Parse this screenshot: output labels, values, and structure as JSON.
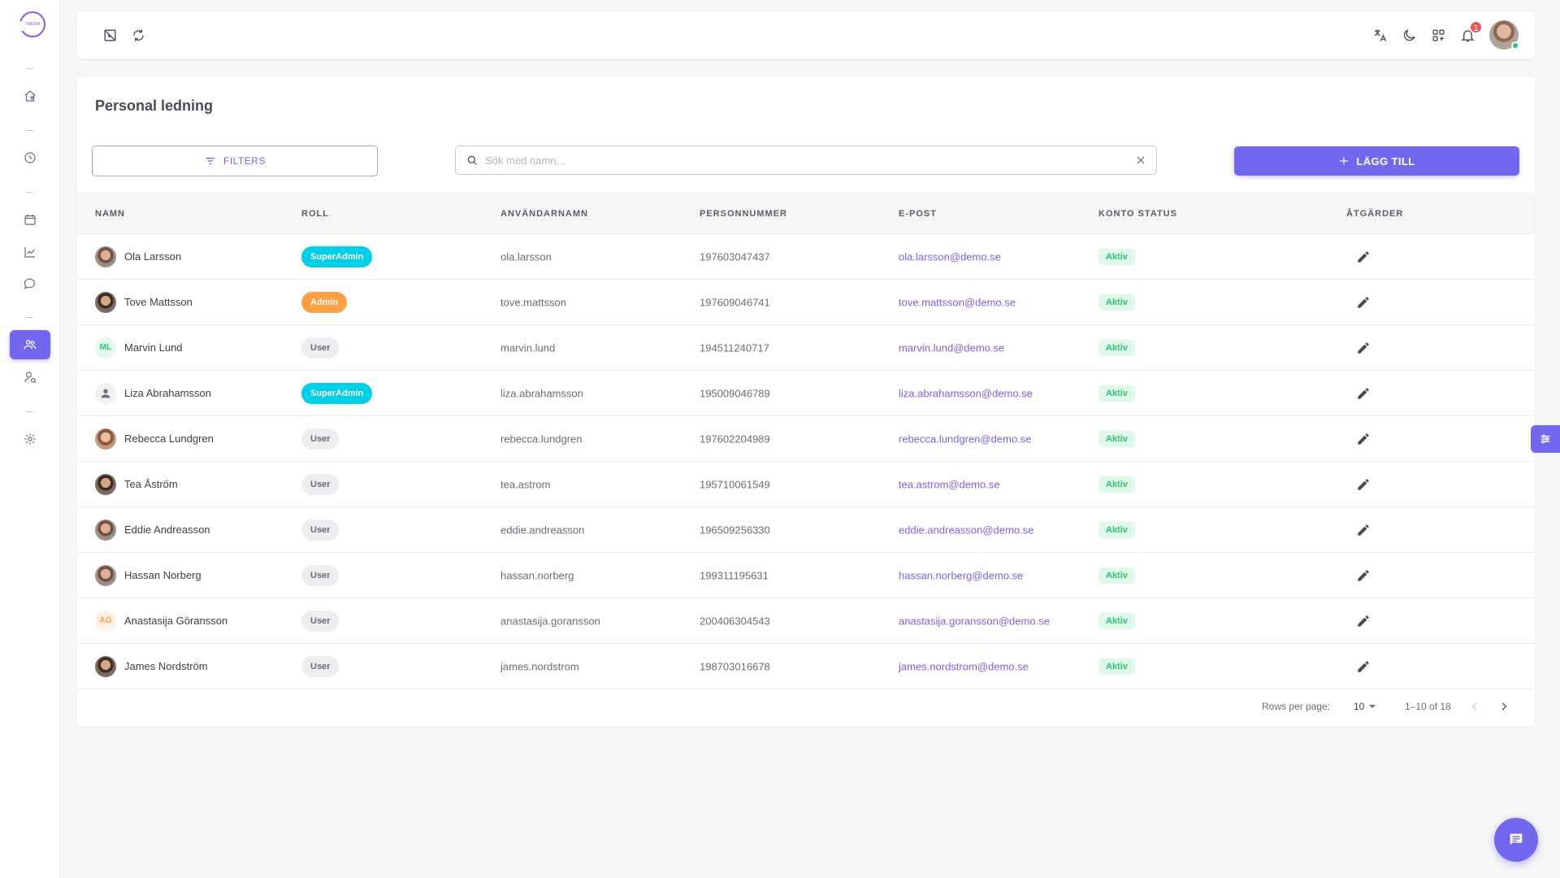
{
  "sidebar": {
    "logo_text": "TIMERA",
    "items": [
      {
        "icon": "home-icon",
        "name": "sidebar-item-home"
      },
      {
        "icon": "clock-icon",
        "name": "sidebar-item-time"
      },
      {
        "icon": "calendar-icon",
        "name": "sidebar-item-calendar"
      },
      {
        "icon": "chart-icon",
        "name": "sidebar-item-reports"
      },
      {
        "icon": "chat-icon",
        "name": "sidebar-item-messages"
      },
      {
        "icon": "users-icon",
        "name": "sidebar-item-staff",
        "active": true
      },
      {
        "icon": "user-search-icon",
        "name": "sidebar-item-users"
      },
      {
        "icon": "gear-icon",
        "name": "sidebar-item-settings"
      }
    ]
  },
  "topbar": {
    "left_icons": [
      "collapse-icon",
      "refresh-icon"
    ],
    "right_icons": [
      "translate-icon",
      "moon-icon",
      "apps-icon",
      "bell-icon"
    ],
    "notification_count": "1"
  },
  "page": {
    "title": "Personal ledning",
    "filters_label": "FILTERS",
    "search_placeholder": "Sök med namn...",
    "add_label": "LÄGG TILL"
  },
  "table": {
    "headers": [
      "NAMN",
      "ROLL",
      "ANVÄNDARNAMN",
      "PERSONNUMMER",
      "E-POST",
      "KONTO STATUS",
      "ÅTGÄRDER"
    ],
    "rows": [
      {
        "name": "Ola Larsson",
        "role": "SuperAdmin",
        "username": "ola.larsson",
        "pnr": "197603047437",
        "email": "ola.larsson@demo.se",
        "status": "Aktiv",
        "avatar": "photo"
      },
      {
        "name": "Tove Mattsson",
        "role": "Admin",
        "username": "tove.mattsson",
        "pnr": "197609046741",
        "email": "tove.mattsson@demo.se",
        "status": "Aktiv",
        "avatar": "photo2"
      },
      {
        "name": "Marvin Lund",
        "role": "User",
        "username": "marvin.lund",
        "pnr": "194511240717",
        "email": "marvin.lund@demo.se",
        "status": "Aktiv",
        "avatar": "ML"
      },
      {
        "name": "Liza Abrahamsson",
        "role": "SuperAdmin",
        "username": "liza.abrahamsson",
        "pnr": "195009046789",
        "email": "liza.abrahamsson@demo.se",
        "status": "Aktiv",
        "avatar": "placeholder"
      },
      {
        "name": "Rebecca Lundgren",
        "role": "User",
        "username": "rebecca.lundgren",
        "pnr": "197602204989",
        "email": "rebecca.lundgren@demo.se",
        "status": "Aktiv",
        "avatar": "photo3"
      },
      {
        "name": "Tea Åström",
        "role": "User",
        "username": "tea.astrom",
        "pnr": "195710061549",
        "email": "tea.astrom@demo.se",
        "status": "Aktiv",
        "avatar": "photo2"
      },
      {
        "name": "Eddie Andreasson",
        "role": "User",
        "username": "eddie.andreasson",
        "pnr": "196509256330",
        "email": "eddie.andreasson@demo.se",
        "status": "Aktiv",
        "avatar": "photo"
      },
      {
        "name": "Hassan Norberg",
        "role": "User",
        "username": "hassan.norberg",
        "pnr": "199311195631",
        "email": "hassan.norberg@demo.se",
        "status": "Aktiv",
        "avatar": "photo"
      },
      {
        "name": "Anastasija Göransson",
        "role": "User",
        "username": "anastasija.goransson",
        "pnr": "200406304543",
        "email": "anastasija.goransson@demo.se",
        "status": "Aktiv",
        "avatar": "AG"
      },
      {
        "name": "James Nordström",
        "role": "User",
        "username": "james.nordstrom",
        "pnr": "198703016678",
        "email": "james.nordstrom@demo.se",
        "status": "Aktiv",
        "avatar": "photo2"
      }
    ]
  },
  "pagination": {
    "rows_per_page_label": "Rows per page:",
    "rows_per_page": "10",
    "range": "1–10 of 18"
  },
  "colors": {
    "primary": "#7367f0",
    "superadmin": "#00cfe8",
    "admin": "#ff9f43",
    "success": "#28c76f",
    "danger": "#ea5455"
  }
}
